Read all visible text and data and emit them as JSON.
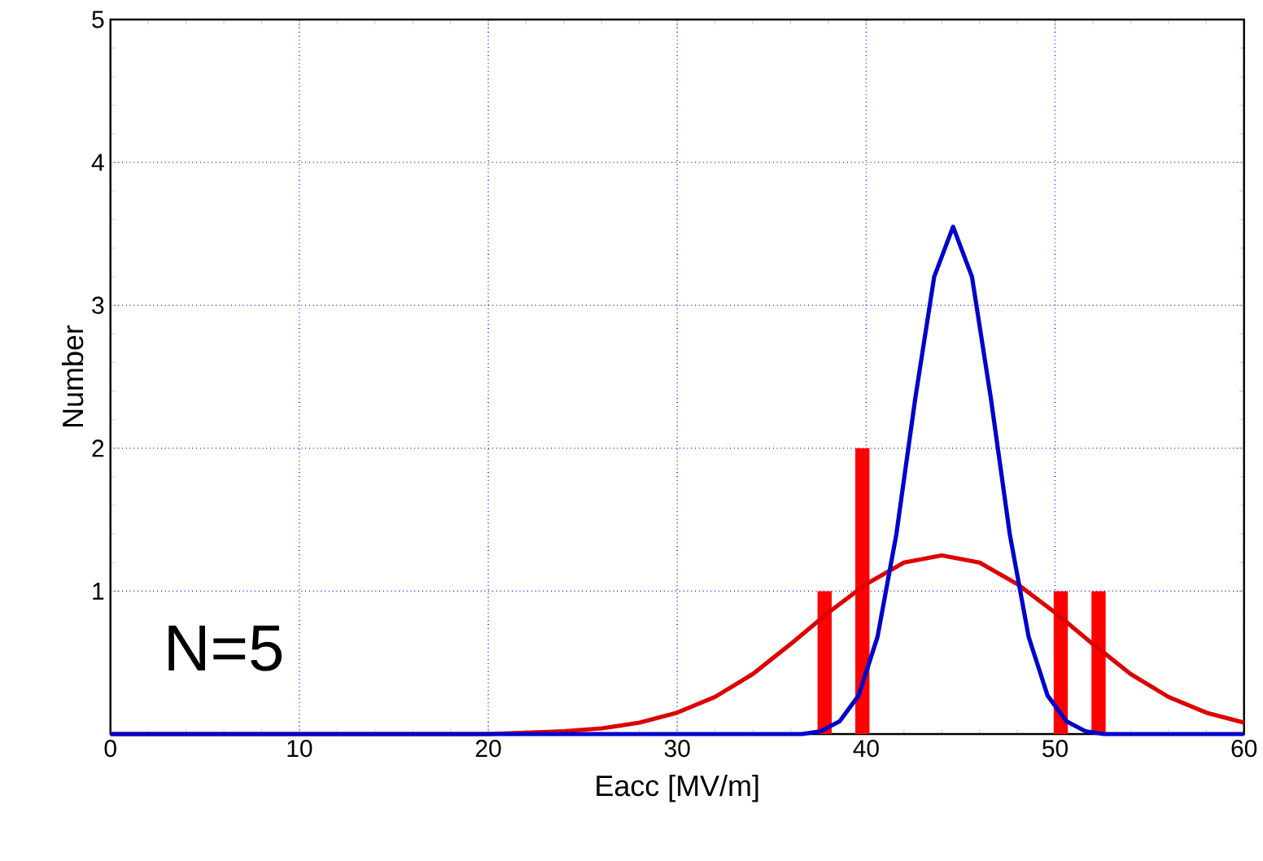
{
  "chart_data": {
    "type": "line",
    "xlabel": "Eacc [MV/m]",
    "ylabel": "Number",
    "xlim": [
      0,
      60
    ],
    "ylim": [
      0,
      5
    ],
    "xticks": [
      0,
      10,
      20,
      30,
      40,
      50,
      60
    ],
    "yticks": [
      1,
      2,
      3,
      4,
      5
    ],
    "grid": true,
    "annotations": [
      "N=5"
    ],
    "series": [
      {
        "type": "bar",
        "color": "#ff0000",
        "x": [
          37.8,
          39.8,
          50.3,
          52.3
        ],
        "values": [
          1,
          2,
          1,
          1
        ]
      },
      {
        "color": "#dd0000",
        "x": [
          0,
          20,
          24,
          26,
          28,
          30,
          32,
          34,
          36,
          38,
          40,
          42,
          44,
          46,
          48,
          50,
          52,
          54,
          56,
          58,
          60
        ],
        "values": [
          0,
          0,
          0.02,
          0.04,
          0.08,
          0.15,
          0.26,
          0.42,
          0.63,
          0.85,
          1.05,
          1.2,
          1.25,
          1.2,
          1.05,
          0.85,
          0.63,
          0.42,
          0.26,
          0.15,
          0.08
        ]
      },
      {
        "color": "#0000cc",
        "x": [
          0,
          36.6,
          37.6,
          38.6,
          39.6,
          40.6,
          41.6,
          42.6,
          43.6,
          44.6,
          45.6,
          46.6,
          47.6,
          48.6,
          49.6,
          50.6,
          51.6,
          52.6,
          60
        ],
        "values": [
          0,
          0,
          0.02,
          0.09,
          0.27,
          0.68,
          1.4,
          2.35,
          3.2,
          3.55,
          3.2,
          2.35,
          1.4,
          0.68,
          0.27,
          0.09,
          0.02,
          0,
          0
        ]
      }
    ]
  }
}
